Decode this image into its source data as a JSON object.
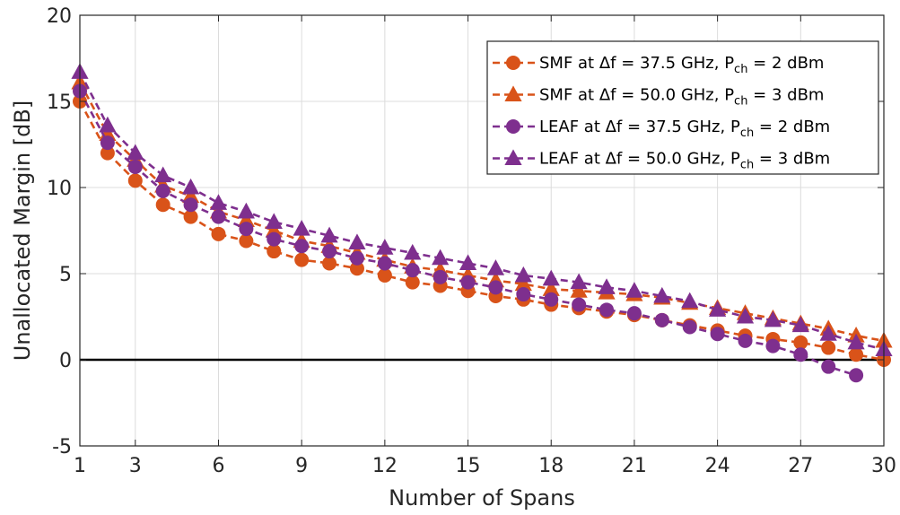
{
  "chart_data": {
    "type": "line",
    "xlabel": "Number of Spans",
    "ylabel": "Unallocated Margin [dB]",
    "xlim": [
      1,
      30
    ],
    "ylim": [
      -5,
      20
    ],
    "xticks": [
      1,
      3,
      6,
      9,
      12,
      15,
      18,
      21,
      24,
      27,
      30
    ],
    "yticks": [
      -5,
      0,
      5,
      10,
      15,
      20
    ],
    "grid": true,
    "legend_position": "top-right",
    "reference_line": {
      "y": 0,
      "color": "#000000"
    },
    "x": [
      1,
      2,
      3,
      4,
      5,
      6,
      7,
      8,
      9,
      10,
      11,
      12,
      13,
      14,
      15,
      16,
      17,
      18,
      19,
      20,
      21,
      22,
      23,
      24,
      25,
      26,
      27,
      28,
      29,
      30
    ],
    "series": [
      {
        "name": "SMF at Δf = 37.5 GHz, P_ch = 2 dBm",
        "legend": {
          "pre": "SMF at Δf = 37.5 GHz, P",
          "sub": "ch",
          "post": " = 2 dBm"
        },
        "marker": "circle",
        "color": "#D95319",
        "line_style": "dashed",
        "values": [
          15.0,
          12.0,
          10.4,
          9.0,
          8.3,
          7.3,
          6.9,
          6.3,
          5.8,
          5.6,
          5.3,
          4.9,
          4.5,
          4.3,
          4.0,
          3.7,
          3.5,
          3.2,
          3.0,
          2.8,
          2.6,
          2.3,
          2.0,
          1.7,
          1.4,
          1.2,
          1.0,
          0.7,
          0.3,
          0.0
        ]
      },
      {
        "name": "SMF at Δf = 50.0 GHz, P_ch = 3 dBm",
        "legend": {
          "pre": "SMF at Δf = 50.0 GHz, P",
          "sub": "ch",
          "post": " = 3 dBm"
        },
        "marker": "triangle",
        "color": "#D95319",
        "line_style": "dashed",
        "values": [
          16.1,
          13.1,
          11.6,
          10.1,
          9.5,
          8.6,
          8.1,
          7.5,
          6.9,
          6.6,
          6.2,
          5.8,
          5.4,
          5.2,
          4.9,
          4.6,
          4.4,
          4.1,
          4.0,
          3.9,
          3.8,
          3.6,
          3.3,
          3.0,
          2.7,
          2.4,
          2.1,
          1.8,
          1.4,
          1.1
        ]
      },
      {
        "name": "LEAF at Δf = 37.5 GHz, P_ch = 2 dBm",
        "legend": {
          "pre": "LEAF at Δf = 37.5 GHz, P",
          "sub": "ch",
          "post": " = 2 dBm"
        },
        "marker": "circle",
        "color": "#7E2F8E",
        "line_style": "dashed",
        "values": [
          15.6,
          12.6,
          11.2,
          9.8,
          9.0,
          8.3,
          7.6,
          7.0,
          6.6,
          6.3,
          5.9,
          5.6,
          5.2,
          4.8,
          4.5,
          4.2,
          3.8,
          3.5,
          3.2,
          2.9,
          2.7,
          2.3,
          1.9,
          1.5,
          1.1,
          0.8,
          0.3,
          -0.4,
          -0.9,
          null
        ]
      },
      {
        "name": "LEAF at Δf = 50.0 GHz, P_ch = 3 dBm",
        "legend": {
          "pre": "LEAF at Δf = 50.0 GHz, P",
          "sub": "ch",
          "post": " = 3 dBm"
        },
        "marker": "triangle",
        "color": "#7E2F8E",
        "line_style": "dashed",
        "values": [
          16.7,
          13.6,
          12.0,
          10.7,
          10.0,
          9.1,
          8.6,
          8.0,
          7.6,
          7.2,
          6.8,
          6.5,
          6.2,
          5.9,
          5.6,
          5.3,
          4.9,
          4.7,
          4.5,
          4.2,
          4.0,
          3.7,
          3.4,
          2.9,
          2.5,
          2.3,
          2.0,
          1.5,
          1.0,
          0.6
        ]
      }
    ]
  }
}
